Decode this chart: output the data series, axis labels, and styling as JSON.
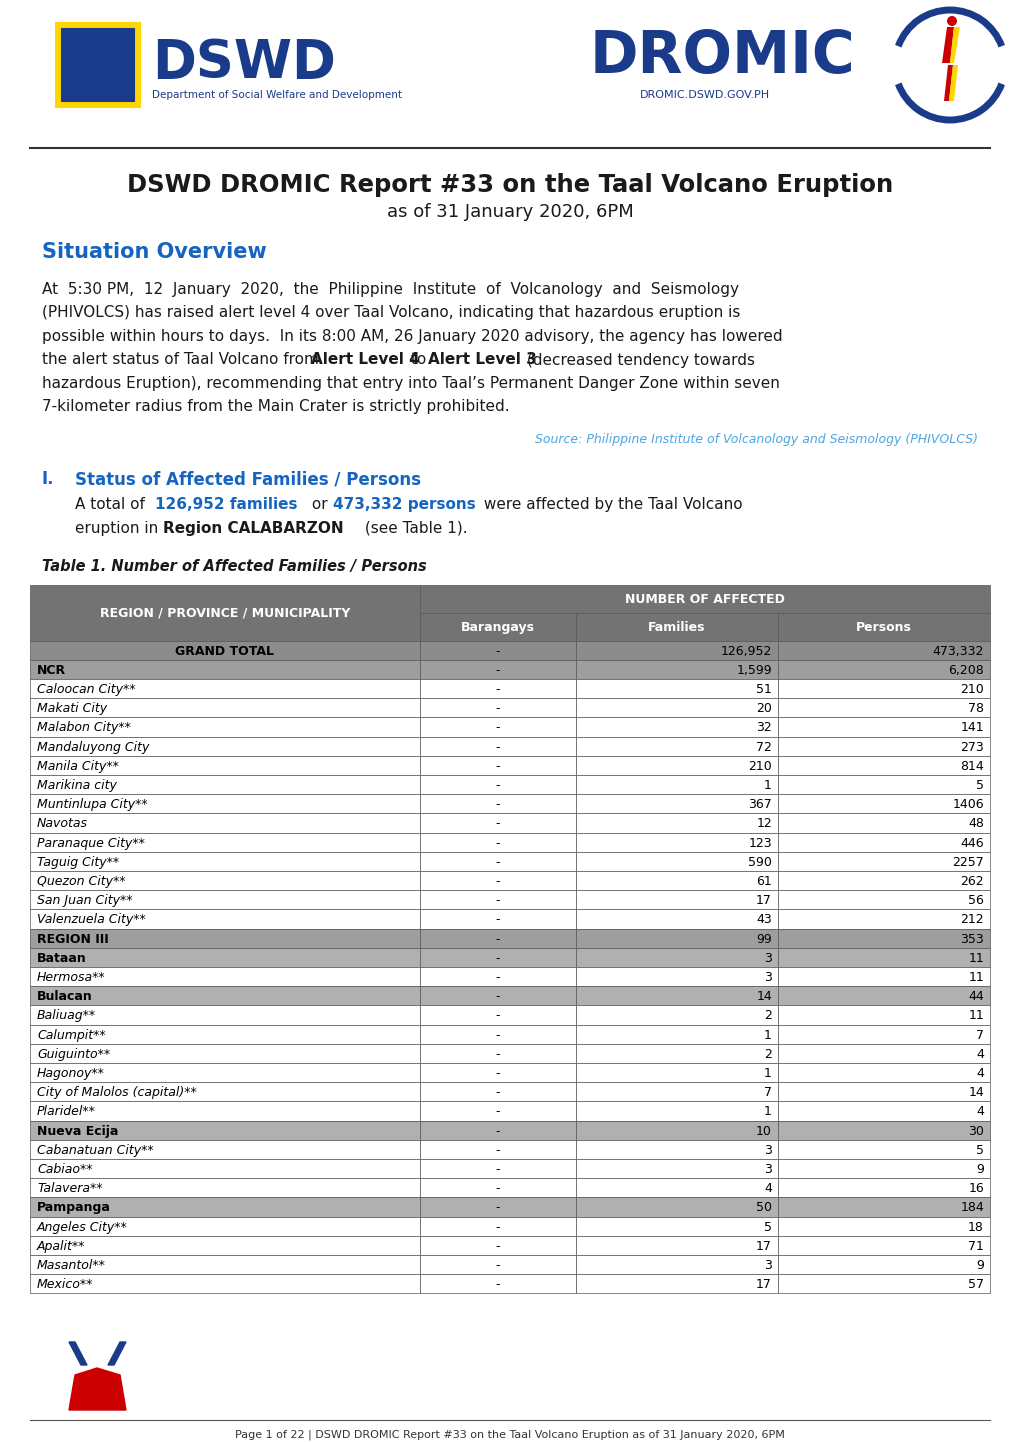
{
  "title_main": "DSWD DROMIC Report #33 on the Taal Volcano Eruption",
  "title_sub": "as of 31 January 2020, 6PM",
  "section1_title": "Situation Overview",
  "source_text": "Source: Philippine Institute of Volcanology and Seismology (PHIVOLCS)",
  "section2_num": "I.",
  "section2_title": "Status of Affected Families / Persons",
  "table_title": "Table 1. Number of Affected Families / Persons",
  "footer_text": "Page 1 of 22 | DSWD DROMIC Report #33 on the Taal Volcano Eruption as of 31 January 2020, 6PM",
  "table_rows": [
    {
      "label": "GRAND TOTAL",
      "barangays": "-",
      "families": "126,952",
      "persons": "473,332",
      "type": "grand_total"
    },
    {
      "label": "NCR",
      "barangays": "-",
      "families": "1,599",
      "persons": "6,208",
      "type": "region"
    },
    {
      "label": "Caloocan City**",
      "barangays": "-",
      "families": "51",
      "persons": "210",
      "type": "city"
    },
    {
      "label": "Makati City",
      "barangays": "-",
      "families": "20",
      "persons": "78",
      "type": "city"
    },
    {
      "label": "Malabon City**",
      "barangays": "-",
      "families": "32",
      "persons": "141",
      "type": "city"
    },
    {
      "label": "Mandaluyong City",
      "barangays": "-",
      "families": "72",
      "persons": "273",
      "type": "city"
    },
    {
      "label": "Manila City**",
      "barangays": "-",
      "families": "210",
      "persons": "814",
      "type": "city"
    },
    {
      "label": "Marikina city",
      "barangays": "-",
      "families": "1",
      "persons": "5",
      "type": "city"
    },
    {
      "label": "Muntinlupa City**",
      "barangays": "-",
      "families": "367",
      "persons": "1406",
      "type": "city"
    },
    {
      "label": "Navotas",
      "barangays": "-",
      "families": "12",
      "persons": "48",
      "type": "city"
    },
    {
      "label": "Paranaque City**",
      "barangays": "-",
      "families": "123",
      "persons": "446",
      "type": "city"
    },
    {
      "label": "Taguig City**",
      "barangays": "-",
      "families": "590",
      "persons": "2257",
      "type": "city"
    },
    {
      "label": "Quezon City**",
      "barangays": "-",
      "families": "61",
      "persons": "262",
      "type": "city"
    },
    {
      "label": "San Juan City**",
      "barangays": "-",
      "families": "17",
      "persons": "56",
      "type": "city"
    },
    {
      "label": "Valenzuela City**",
      "barangays": "-",
      "families": "43",
      "persons": "212",
      "type": "city"
    },
    {
      "label": "REGION III",
      "barangays": "-",
      "families": "99",
      "persons": "353",
      "type": "region"
    },
    {
      "label": "Bataan",
      "barangays": "-",
      "families": "3",
      "persons": "11",
      "type": "province"
    },
    {
      "label": "Hermosa**",
      "barangays": "-",
      "families": "3",
      "persons": "11",
      "type": "city"
    },
    {
      "label": "Bulacan",
      "barangays": "-",
      "families": "14",
      "persons": "44",
      "type": "province"
    },
    {
      "label": "Baliuag**",
      "barangays": "-",
      "families": "2",
      "persons": "11",
      "type": "city"
    },
    {
      "label": "Calumpit**",
      "barangays": "-",
      "families": "1",
      "persons": "7",
      "type": "city"
    },
    {
      "label": "Guiguinto**",
      "barangays": "-",
      "families": "2",
      "persons": "4",
      "type": "city"
    },
    {
      "label": "Hagonoy**",
      "barangays": "-",
      "families": "1",
      "persons": "4",
      "type": "city"
    },
    {
      "label": "City of Malolos (capital)**",
      "barangays": "-",
      "families": "7",
      "persons": "14",
      "type": "city"
    },
    {
      "label": "Plaridel**",
      "barangays": "-",
      "families": "1",
      "persons": "4",
      "type": "city"
    },
    {
      "label": "Nueva Ecija",
      "barangays": "-",
      "families": "10",
      "persons": "30",
      "type": "province"
    },
    {
      "label": "Cabanatuan City**",
      "barangays": "-",
      "families": "3",
      "persons": "5",
      "type": "city"
    },
    {
      "label": "Cabiao**",
      "barangays": "-",
      "families": "3",
      "persons": "9",
      "type": "city"
    },
    {
      "label": "Talavera**",
      "barangays": "-",
      "families": "4",
      "persons": "16",
      "type": "city"
    },
    {
      "label": "Pampanga",
      "barangays": "-",
      "families": "50",
      "persons": "184",
      "type": "province"
    },
    {
      "label": "Angeles City**",
      "barangays": "-",
      "families": "5",
      "persons": "18",
      "type": "city"
    },
    {
      "label": "Apalit**",
      "barangays": "-",
      "families": "17",
      "persons": "71",
      "type": "city"
    },
    {
      "label": "Masantol**",
      "barangays": "-",
      "families": "3",
      "persons": "9",
      "type": "city"
    },
    {
      "label": "Mexico**",
      "barangays": "-",
      "families": "17",
      "persons": "57",
      "type": "city"
    }
  ],
  "dswd_blue": "#1a3a8a",
  "dswd_red": "#CC0000",
  "dswd_yellow": "#FFD700",
  "dromic_blue": "#1a3a8a",
  "title_color": "#1a1a1a",
  "section_blue": "#1565C0",
  "source_blue": "#4da6e0",
  "dark_text": "#1a1a1a",
  "table_header_bg": "#737373",
  "table_grand_total_bg": "#8c8c8c",
  "table_region_bg": "#9e9e9e",
  "table_province_bg": "#b0b0b0",
  "table_white_bg": "#FFFFFF",
  "border_color": "#555555"
}
